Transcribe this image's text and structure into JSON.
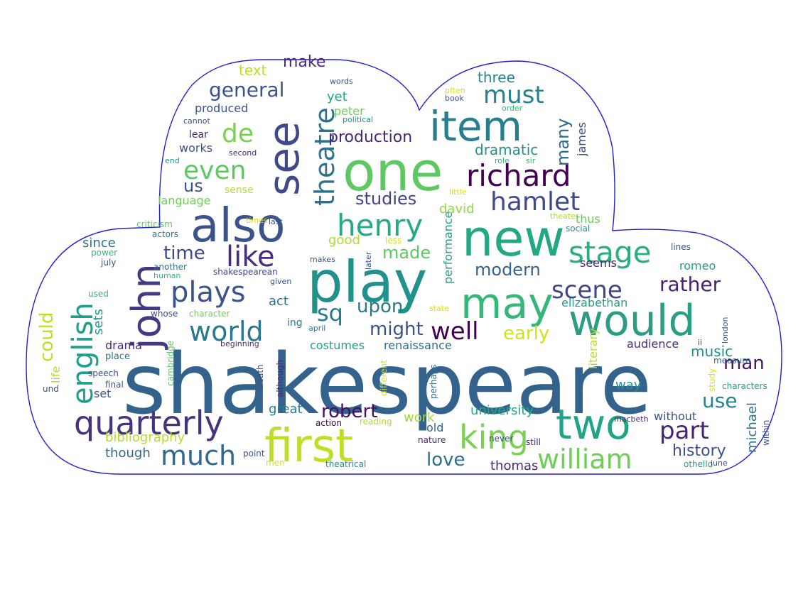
{
  "cloud": {
    "outline_color": "#1f1fd6",
    "palette": [
      "#440154",
      "#482878",
      "#3e4989",
      "#31688e",
      "#26828e",
      "#1f9e89",
      "#35b779",
      "#6ece58",
      "#b5de2b",
      "#fde725"
    ]
  },
  "words": [
    {
      "text": "shakespeare",
      "color": "#33638d"
    },
    {
      "text": "play",
      "color": "#21918c"
    },
    {
      "text": "one",
      "color": "#5ec962"
    },
    {
      "text": "new",
      "color": "#22a884"
    },
    {
      "text": "also",
      "color": "#3b528b"
    },
    {
      "text": "first",
      "color": "#bddf26"
    },
    {
      "text": "would",
      "color": "#2a9d84"
    },
    {
      "text": "see",
      "color": "#3e4a89"
    },
    {
      "text": "may",
      "color": "#35b779"
    },
    {
      "text": "item",
      "color": "#277f8e"
    },
    {
      "text": "two",
      "color": "#20a486"
    },
    {
      "text": "john",
      "color": "#443983"
    },
    {
      "text": "quarterly",
      "color": "#46327e"
    },
    {
      "text": "english",
      "color": "#1f9e89"
    },
    {
      "text": "richard",
      "color": "#440154"
    },
    {
      "text": "king",
      "color": "#7ad151"
    },
    {
      "text": "henry",
      "color": "#25ab82"
    },
    {
      "text": "stage",
      "color": "#29af7f"
    },
    {
      "text": "like",
      "color": "#472d7b"
    },
    {
      "text": "plays",
      "color": "#3b528b"
    },
    {
      "text": "theatre",
      "color": "#2c728e"
    },
    {
      "text": "william",
      "color": "#6ece58"
    },
    {
      "text": "much",
      "color": "#31688e"
    },
    {
      "text": "hamlet",
      "color": "#3e4a89"
    },
    {
      "text": "world",
      "color": "#2a788e"
    },
    {
      "text": "must",
      "color": "#26828e"
    },
    {
      "text": "part",
      "color": "#482475"
    },
    {
      "text": "scene",
      "color": "#404688"
    },
    {
      "text": "even",
      "color": "#5ec962"
    },
    {
      "text": "well",
      "color": "#440154"
    },
    {
      "text": "de",
      "color": "#7ad151"
    },
    {
      "text": "sq",
      "color": "#2a788e"
    },
    {
      "text": "rather",
      "color": "#482173"
    },
    {
      "text": "general",
      "color": "#3b528b"
    },
    {
      "text": "time",
      "color": "#3e4989"
    },
    {
      "text": "might",
      "color": "#3b528b"
    },
    {
      "text": "upon",
      "color": "#2a788e"
    },
    {
      "text": "robert",
      "color": "#471063"
    },
    {
      "text": "studies",
      "color": "#414487"
    },
    {
      "text": "could",
      "color": "#bddf26"
    },
    {
      "text": "made",
      "color": "#5ec962"
    },
    {
      "text": "early",
      "color": "#d2e21b"
    },
    {
      "text": "us",
      "color": "#3b528b"
    },
    {
      "text": "love",
      "color": "#2e6e8e"
    },
    {
      "text": "man",
      "color": "#471365"
    },
    {
      "text": "modern",
      "color": "#33638d"
    },
    {
      "text": "use",
      "color": "#25848e"
    },
    {
      "text": "production",
      "color": "#482878"
    },
    {
      "text": "many",
      "color": "#31688e"
    },
    {
      "text": "history",
      "color": "#3b528b"
    },
    {
      "text": "make",
      "color": "#482878"
    },
    {
      "text": "text",
      "color": "#bddf26"
    },
    {
      "text": "three",
      "color": "#25848e"
    },
    {
      "text": "dramatic",
      "color": "#21918c"
    },
    {
      "text": "music",
      "color": "#21918c"
    },
    {
      "text": "bibliography",
      "color": "#b5de2b"
    },
    {
      "text": "university",
      "color": "#22a884"
    },
    {
      "text": "michael",
      "color": "#2c728e"
    },
    {
      "text": "though",
      "color": "#31688e"
    },
    {
      "text": "thomas",
      "color": "#482878"
    },
    {
      "text": "produced",
      "color": "#3b528b"
    },
    {
      "text": "yet",
      "color": "#20a486"
    },
    {
      "text": "peter",
      "color": "#6ece58"
    },
    {
      "text": "james",
      "color": "#3e4a89"
    },
    {
      "text": "since",
      "color": "#2c728e"
    },
    {
      "text": "good",
      "color": "#addc30"
    },
    {
      "text": "performance",
      "color": "#1f9e89"
    },
    {
      "text": "renaissance",
      "color": "#2e6e8e"
    },
    {
      "text": "david",
      "color": "#8fd744"
    },
    {
      "text": "costumes",
      "color": "#20a486"
    },
    {
      "text": "drama",
      "color": "#482878"
    },
    {
      "text": "sets",
      "color": "#21918c"
    },
    {
      "text": "life",
      "color": "#addc30"
    },
    {
      "text": "act",
      "color": "#2c728e"
    },
    {
      "text": "great",
      "color": "#287d8e"
    },
    {
      "text": "work",
      "color": "#a0da39"
    },
    {
      "text": "old",
      "color": "#33638d"
    },
    {
      "text": "without",
      "color": "#3b528b"
    },
    {
      "text": "way",
      "color": "#21918c"
    },
    {
      "text": "audience",
      "color": "#472d7b"
    },
    {
      "text": "elizabethan",
      "color": "#1f9e89"
    },
    {
      "text": "seems",
      "color": "#482878"
    },
    {
      "text": "romeo",
      "color": "#2a9d84"
    },
    {
      "text": "thus",
      "color": "#6ece58"
    },
    {
      "text": "set",
      "color": "#3b528b"
    },
    {
      "text": "lear",
      "color": "#482878"
    },
    {
      "text": "works",
      "color": "#3b528b"
    },
    {
      "text": "language",
      "color": "#6ece58"
    },
    {
      "text": "sense",
      "color": "#addc30"
    },
    {
      "text": "shakespearean",
      "color": "#3e4989"
    },
    {
      "text": "ing",
      "color": "#2a788e"
    },
    {
      "text": "literary",
      "color": "#b5de2b"
    },
    {
      "text": "actors",
      "color": "#2a788e"
    },
    {
      "text": "criticism",
      "color": "#5ec962"
    },
    {
      "text": "power",
      "color": "#35b779"
    },
    {
      "text": "july",
      "color": "#3b528b"
    },
    {
      "text": "another",
      "color": "#2a788e"
    },
    {
      "text": "human",
      "color": "#35b779"
    },
    {
      "text": "used",
      "color": "#35b779"
    },
    {
      "text": "whose",
      "color": "#3b528b"
    },
    {
      "text": "character",
      "color": "#6ece58"
    },
    {
      "text": "beginning",
      "color": "#482878"
    },
    {
      "text": "april",
      "color": "#2c728e"
    },
    {
      "text": "place",
      "color": "#2a788e"
    },
    {
      "text": "speech",
      "color": "#3b528b"
    },
    {
      "text": "final",
      "color": "#3b528b"
    },
    {
      "text": "und",
      "color": "#3b528b"
    },
    {
      "text": "cambridge",
      "color": "#5ec962"
    },
    {
      "text": "death",
      "color": "#3b528b"
    },
    {
      "text": "although",
      "color": "#482878"
    },
    {
      "text": "different",
      "color": "#d2e21b"
    },
    {
      "text": "perhaps",
      "color": "#2c728e"
    },
    {
      "text": "reading",
      "color": "#addc30"
    },
    {
      "text": "action",
      "color": "#440154"
    },
    {
      "text": "point",
      "color": "#3b528b"
    },
    {
      "text": "men",
      "color": "#d2e21b"
    },
    {
      "text": "theatrical",
      "color": "#21918c"
    },
    {
      "text": "nature",
      "color": "#482878"
    },
    {
      "text": "never",
      "color": "#3b528b"
    },
    {
      "text": "still",
      "color": "#482878"
    },
    {
      "text": "macbeth",
      "color": "#482878"
    },
    {
      "text": "study",
      "color": "#d2e21b"
    },
    {
      "text": "measure",
      "color": "#2c728e"
    },
    {
      "text": "characters",
      "color": "#2a9d84"
    },
    {
      "text": "within",
      "color": "#3b528b"
    },
    {
      "text": "othello",
      "color": "#2a9d84"
    },
    {
      "text": "june",
      "color": "#3b528b"
    },
    {
      "text": "london",
      "color": "#3b528b"
    },
    {
      "text": "ii",
      "color": "#482878"
    },
    {
      "text": "lines",
      "color": "#3b528b"
    },
    {
      "text": "social",
      "color": "#21918c"
    },
    {
      "text": "theater",
      "color": "#addc30"
    },
    {
      "text": "less",
      "color": "#d2e21b"
    },
    {
      "text": "later",
      "color": "#3b528b"
    },
    {
      "text": "makes",
      "color": "#3b528b"
    },
    {
      "text": "given",
      "color": "#3b528b"
    },
    {
      "text": "last",
      "color": "#3b528b"
    },
    {
      "text": "times",
      "color": "#d2e21b"
    },
    {
      "text": "little",
      "color": "#d2e21b"
    },
    {
      "text": "state",
      "color": "#d2e21b"
    },
    {
      "text": "words",
      "color": "#3b528b"
    },
    {
      "text": "political",
      "color": "#21918c"
    },
    {
      "text": "cannot",
      "color": "#3b528b"
    },
    {
      "text": "second",
      "color": "#482878"
    },
    {
      "text": "end",
      "color": "#21918c"
    },
    {
      "text": "role",
      "color": "#35b779"
    },
    {
      "text": "sir",
      "color": "#35b779"
    },
    {
      "text": "pften",
      "color": "#d2e21b"
    },
    {
      "text": "book",
      "color": "#3b528b"
    },
    {
      "text": "order",
      "color": "#35b779"
    }
  ]
}
